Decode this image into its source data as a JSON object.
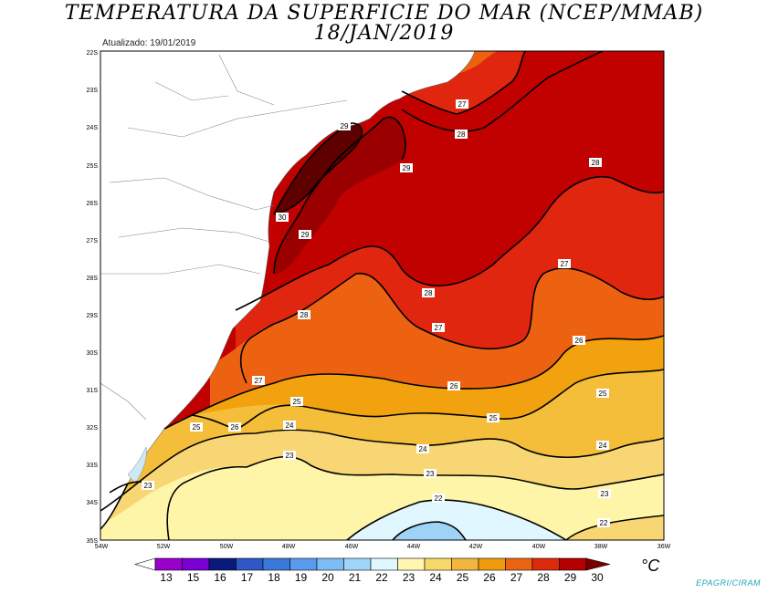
{
  "title": "TEMPERATURA DA SUPERFICIE DO MAR (NCEP/MMAB)",
  "date": "18/JAN/2019",
  "updated": "Atualizado: 19/01/2019",
  "credit": "EPAGRI/CIRAM",
  "unit": "°C",
  "lat_labels": [
    "22S",
    "23S",
    "24S",
    "25S",
    "26S",
    "27S",
    "28S",
    "29S",
    "30S",
    "31S",
    "32S",
    "33S",
    "34S",
    "35S"
  ],
  "lon_labels": [
    "54W",
    "52W",
    "50W",
    "48W",
    "46W",
    "44W",
    "42W",
    "40W",
    "38W",
    "36W"
  ],
  "contour_labels": [
    "30",
    "29",
    "29",
    "28",
    "28",
    "28",
    "27",
    "27",
    "27",
    "27",
    "26",
    "26",
    "26",
    "25",
    "25",
    "25",
    "25",
    "24",
    "24",
    "24",
    "23",
    "23",
    "23",
    "23",
    "22",
    "22",
    "28",
    "29"
  ],
  "colorbar": {
    "values": [
      "13",
      "15",
      "16",
      "17",
      "18",
      "19",
      "20",
      "21",
      "22",
      "23",
      "24",
      "25",
      "26",
      "27",
      "28",
      "29",
      "30"
    ],
    "colors": [
      "#9900cc",
      "#7a00d6",
      "#0a1a7a",
      "#2f57c6",
      "#3a78da",
      "#5a9aee",
      "#7cbdf4",
      "#9fd6f8",
      "#dff7ff",
      "#fff7b0",
      "#f8d86a",
      "#f2b53f",
      "#f09a10",
      "#ea6412",
      "#dd2a0d",
      "#b40000",
      "#7a0000"
    ]
  }
}
